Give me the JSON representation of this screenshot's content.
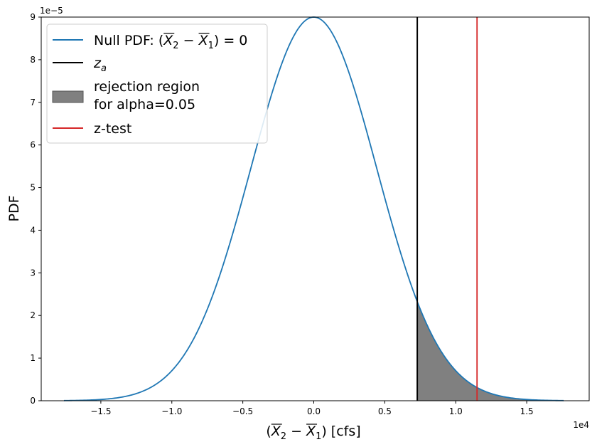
{
  "chart_data": {
    "type": "line",
    "xlabel_parts": [
      "(",
      "X",
      "2",
      " − ",
      "X",
      "1",
      ") [cfs]"
    ],
    "ylabel": "PDF",
    "x_offset_label": "1e4",
    "y_offset_label": "1e−5",
    "xlim": [
      -19200,
      19400
    ],
    "ylim": [
      0,
      9e-05
    ],
    "x_ticks": [
      -15000,
      -10000,
      -5000,
      0,
      5000,
      10000,
      15000
    ],
    "x_tick_labels": [
      "−1.5",
      "−1.0",
      "−0.5",
      "0.0",
      "0.5",
      "1.0",
      "1.5"
    ],
    "y_ticks": [
      0,
      1e-05,
      2e-05,
      3e-05,
      4e-05,
      5e-05,
      6e-05,
      7e-05,
      8e-05,
      9e-05
    ],
    "y_tick_labels": [
      "0",
      "1",
      "2",
      "3",
      "4",
      "5",
      "6",
      "7",
      "8",
      "9"
    ],
    "null_pdf": {
      "mean": 0,
      "sd": 4430,
      "peak": 9e-05,
      "x_range": [
        -17600,
        17600
      ]
    },
    "z_a": 7290,
    "z_test": 11500,
    "rejection_region": {
      "from": 7290,
      "to": 17600
    },
    "colors": {
      "null_pdf": "#1f77b4",
      "z_a": "#000000",
      "z_test": "#d62728",
      "rejection_fill": "#808080"
    },
    "legend": {
      "placement": "top-left",
      "entries": [
        {
          "key": "null_pdf",
          "label_parts": [
            "Null PDF: (",
            "X",
            "2",
            " − ",
            "X",
            "1",
            ") = 0"
          ]
        },
        {
          "key": "z_a",
          "label_parts": [
            "z",
            "a"
          ]
        },
        {
          "key": "rejection",
          "label_lines": [
            "rejection region",
            "for alpha=0.05"
          ]
        },
        {
          "key": "z_test",
          "label": "z-test"
        }
      ]
    }
  }
}
